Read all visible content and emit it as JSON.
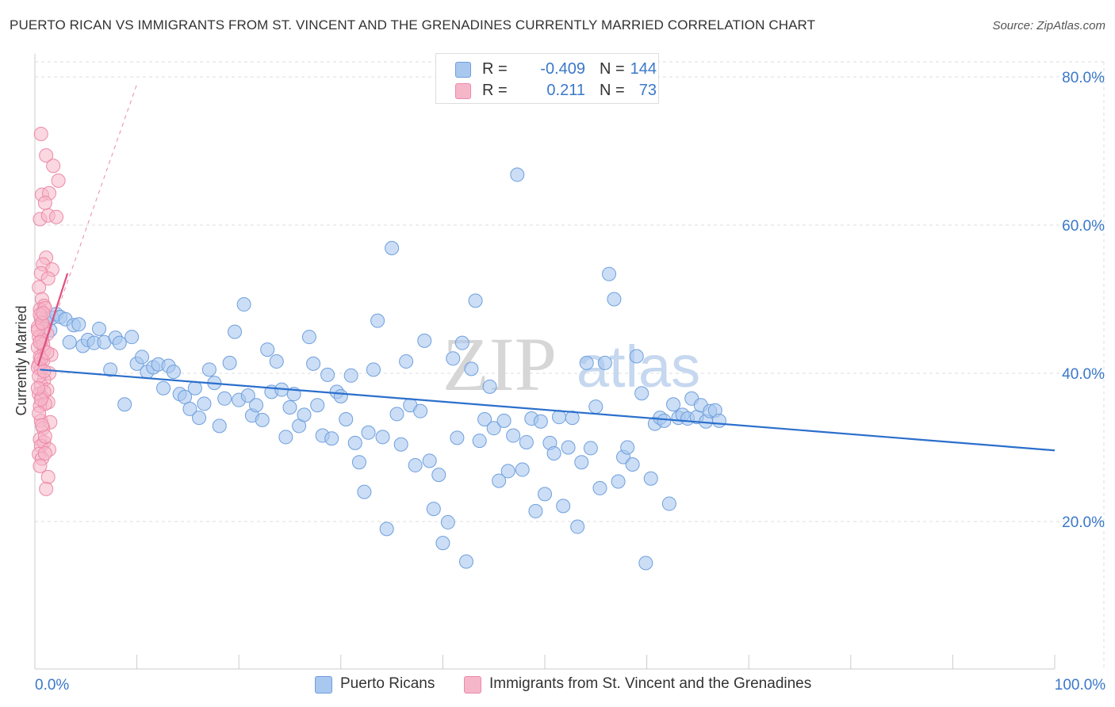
{
  "title": "PUERTO RICAN VS IMMIGRANTS FROM ST. VINCENT AND THE GRENADINES CURRENTLY MARRIED CORRELATION CHART",
  "source": "Source: ZipAtlas.com",
  "watermark": {
    "zip": "ZIP",
    "atlas": "atlas"
  },
  "colors": {
    "blue_fill": "#a9c8f0",
    "blue_edge": "#6f9fdc",
    "blue_line": "#2b6fcc",
    "pink_fill": "#f6b6c9",
    "pink_edge": "#ec8aa8",
    "pink_line": "#e0507e",
    "axis_text": "#3a78c9",
    "grid": "#dddddd"
  },
  "legend_top": [
    {
      "name": "series-blue",
      "r_label": "R =",
      "r_value": "-0.409",
      "n_label": "N =",
      "n_value": "144",
      "color": "#a9c8f0"
    },
    {
      "name": "series-pink",
      "r_label": "R =",
      "r_value": "0.211",
      "n_label": "N =",
      "n_value": "73",
      "color": "#f6b6c9"
    }
  ],
  "legend_bottom": [
    {
      "label": "Puerto Ricans",
      "color": "#a9c8f0"
    },
    {
      "label": "Immigrants from St. Vincent and the Grenadines",
      "color": "#f6b6c9"
    }
  ],
  "chart_data": {
    "type": "scatter",
    "title": "PUERTO RICAN VS IMMIGRANTS FROM ST. VINCENT AND THE GRENADINES CURRENTLY MARRIED CORRELATION CHART",
    "xlabel": "",
    "ylabel": "Currently Married",
    "xlim": [
      0,
      100
    ],
    "ylim": [
      0,
      82
    ],
    "x_tick_labels": [
      {
        "value": 0,
        "label": "0.0%"
      },
      {
        "value": 100,
        "label": "100.0%"
      }
    ],
    "y_tick_labels": [
      {
        "value": 20,
        "label": "20.0%"
      },
      {
        "value": 40,
        "label": "40.0%"
      },
      {
        "value": 60,
        "label": "60.0%"
      },
      {
        "value": 80,
        "label": "80.0%"
      }
    ],
    "grid": true,
    "legend_position": "top-center",
    "series": [
      {
        "name": "Puerto Ricans",
        "color": "#a9c8f0",
        "trend": {
          "x": [
            0.5,
            100
          ],
          "y": [
            40.5,
            29.6
          ]
        },
        "points": [
          [
            1.2,
            47.3
          ],
          [
            1.5,
            45.8
          ],
          [
            1.7,
            47.5
          ],
          [
            2.1,
            48.0
          ],
          [
            2.5,
            47.6
          ],
          [
            3.0,
            47.3
          ],
          [
            3.4,
            44.2
          ],
          [
            3.8,
            46.5
          ],
          [
            4.3,
            46.6
          ],
          [
            4.7,
            43.7
          ],
          [
            5.2,
            44.5
          ],
          [
            5.8,
            44.1
          ],
          [
            6.3,
            46.0
          ],
          [
            6.8,
            44.2
          ],
          [
            7.4,
            40.5
          ],
          [
            7.9,
            44.8
          ],
          [
            8.3,
            44.1
          ],
          [
            8.8,
            35.8
          ],
          [
            9.5,
            44.9
          ],
          [
            10.0,
            41.3
          ],
          [
            10.5,
            42.2
          ],
          [
            11.0,
            40.2
          ],
          [
            11.6,
            40.8
          ],
          [
            12.1,
            41.2
          ],
          [
            12.6,
            38.0
          ],
          [
            13.1,
            41.0
          ],
          [
            13.6,
            40.2
          ],
          [
            14.2,
            37.2
          ],
          [
            14.7,
            36.8
          ],
          [
            15.2,
            35.2
          ],
          [
            15.7,
            38.0
          ],
          [
            16.1,
            34.0
          ],
          [
            16.6,
            35.9
          ],
          [
            17.1,
            40.5
          ],
          [
            17.6,
            38.7
          ],
          [
            18.1,
            32.9
          ],
          [
            18.6,
            36.6
          ],
          [
            19.1,
            41.4
          ],
          [
            19.6,
            45.6
          ],
          [
            20.0,
            36.4
          ],
          [
            20.5,
            49.3
          ],
          [
            20.9,
            37.0
          ],
          [
            21.3,
            34.3
          ],
          [
            21.7,
            35.7
          ],
          [
            22.3,
            33.7
          ],
          [
            22.8,
            43.2
          ],
          [
            23.2,
            37.5
          ],
          [
            23.7,
            41.6
          ],
          [
            24.2,
            37.8
          ],
          [
            24.6,
            31.4
          ],
          [
            25.0,
            35.4
          ],
          [
            25.4,
            37.2
          ],
          [
            25.9,
            32.9
          ],
          [
            26.4,
            34.4
          ],
          [
            26.9,
            44.9
          ],
          [
            27.3,
            41.3
          ],
          [
            27.7,
            35.7
          ],
          [
            28.2,
            31.6
          ],
          [
            28.7,
            39.8
          ],
          [
            29.1,
            31.2
          ],
          [
            29.6,
            37.5
          ],
          [
            30.0,
            36.9
          ],
          [
            30.5,
            33.8
          ],
          [
            31.0,
            39.7
          ],
          [
            31.4,
            30.6
          ],
          [
            31.8,
            28.0
          ],
          [
            32.3,
            24.0
          ],
          [
            32.7,
            32.0
          ],
          [
            33.2,
            40.5
          ],
          [
            33.6,
            47.1
          ],
          [
            34.1,
            31.4
          ],
          [
            34.5,
            19.0
          ],
          [
            35.0,
            56.9
          ],
          [
            35.5,
            34.5
          ],
          [
            35.9,
            30.4
          ],
          [
            36.4,
            41.6
          ],
          [
            36.8,
            35.7
          ],
          [
            37.3,
            27.6
          ],
          [
            37.8,
            34.9
          ],
          [
            38.2,
            44.4
          ],
          [
            38.7,
            28.2
          ],
          [
            39.1,
            21.7
          ],
          [
            39.6,
            26.3
          ],
          [
            40.0,
            17.1
          ],
          [
            40.5,
            19.9
          ],
          [
            41.0,
            42.0
          ],
          [
            41.4,
            31.3
          ],
          [
            41.9,
            44.1
          ],
          [
            42.3,
            14.6
          ],
          [
            42.8,
            40.6
          ],
          [
            43.2,
            49.8
          ],
          [
            43.6,
            30.9
          ],
          [
            44.1,
            33.8
          ],
          [
            44.6,
            38.2
          ],
          [
            45.0,
            32.6
          ],
          [
            45.5,
            25.5
          ],
          [
            46.0,
            33.6
          ],
          [
            46.4,
            26.8
          ],
          [
            46.9,
            31.6
          ],
          [
            47.3,
            66.8
          ],
          [
            47.8,
            27.0
          ],
          [
            48.2,
            30.7
          ],
          [
            48.7,
            33.9
          ],
          [
            49.1,
            21.4
          ],
          [
            49.6,
            33.5
          ],
          [
            50.0,
            23.7
          ],
          [
            50.5,
            30.6
          ],
          [
            50.9,
            29.2
          ],
          [
            51.4,
            34.1
          ],
          [
            51.8,
            22.1
          ],
          [
            52.3,
            30.0
          ],
          [
            52.7,
            34.0
          ],
          [
            53.2,
            19.3
          ],
          [
            53.6,
            28.0
          ],
          [
            54.1,
            41.4
          ],
          [
            54.5,
            29.9
          ],
          [
            55.0,
            35.5
          ],
          [
            55.4,
            24.5
          ],
          [
            55.9,
            41.4
          ],
          [
            56.3,
            53.4
          ],
          [
            56.8,
            50.0
          ],
          [
            57.2,
            25.4
          ],
          [
            57.7,
            28.7
          ],
          [
            58.1,
            30.0
          ],
          [
            58.6,
            27.7
          ],
          [
            59.0,
            42.3
          ],
          [
            59.5,
            37.3
          ],
          [
            59.9,
            14.4
          ],
          [
            60.4,
            25.8
          ],
          [
            60.8,
            33.2
          ],
          [
            61.3,
            34.0
          ],
          [
            61.7,
            33.6
          ],
          [
            62.2,
            22.4
          ],
          [
            62.6,
            35.8
          ],
          [
            63.1,
            34.0
          ],
          [
            63.5,
            34.4
          ],
          [
            64.0,
            33.9
          ],
          [
            64.4,
            36.6
          ],
          [
            64.9,
            34.1
          ],
          [
            65.3,
            35.7
          ],
          [
            65.8,
            33.5
          ],
          [
            66.2,
            34.9
          ],
          [
            66.7,
            35.0
          ],
          [
            67.1,
            33.6
          ]
        ]
      },
      {
        "name": "Immigrants from St. Vincent and the Grenadines",
        "color": "#f6b6c9",
        "trend": {
          "x": [
            0.3,
            3.2
          ],
          "y": [
            41.0,
            53.5
          ]
        },
        "trend_extended": {
          "x": [
            0.3,
            10.0
          ],
          "y": [
            41.0,
            79.0
          ]
        },
        "points": [
          [
            0.6,
            72.3
          ],
          [
            1.1,
            69.4
          ],
          [
            1.8,
            68.0
          ],
          [
            2.3,
            66.0
          ],
          [
            0.7,
            64.1
          ],
          [
            1.4,
            64.3
          ],
          [
            1.0,
            63.0
          ],
          [
            0.5,
            60.8
          ],
          [
            1.3,
            61.3
          ],
          [
            2.1,
            61.1
          ],
          [
            1.1,
            55.6
          ],
          [
            0.8,
            54.7
          ],
          [
            1.7,
            54.0
          ],
          [
            0.6,
            53.5
          ],
          [
            1.3,
            52.8
          ],
          [
            0.4,
            51.6
          ],
          [
            0.7,
            50.0
          ],
          [
            0.9,
            49.1
          ],
          [
            0.5,
            48.6
          ],
          [
            1.0,
            48.8
          ],
          [
            0.6,
            47.4
          ],
          [
            0.8,
            46.6
          ],
          [
            0.3,
            46.2
          ],
          [
            0.9,
            46.0
          ],
          [
            1.2,
            45.3
          ],
          [
            0.4,
            44.9
          ],
          [
            0.7,
            44.5
          ],
          [
            0.3,
            43.5
          ],
          [
            0.9,
            43.1
          ],
          [
            1.6,
            42.5
          ],
          [
            0.5,
            42.2
          ],
          [
            0.8,
            41.7
          ],
          [
            0.4,
            41.2
          ],
          [
            0.6,
            40.5
          ],
          [
            1.4,
            40.0
          ],
          [
            0.3,
            40.8
          ],
          [
            0.9,
            39.1
          ],
          [
            0.6,
            38.4
          ],
          [
            1.2,
            37.8
          ],
          [
            0.4,
            37.2
          ],
          [
            0.7,
            36.8
          ],
          [
            1.3,
            36.1
          ],
          [
            0.5,
            35.6
          ],
          [
            1.0,
            35.9
          ],
          [
            0.6,
            33.6
          ],
          [
            1.5,
            33.4
          ],
          [
            0.8,
            32.6
          ],
          [
            0.5,
            31.1
          ],
          [
            0.9,
            30.7
          ],
          [
            0.6,
            30.2
          ],
          [
            1.4,
            29.7
          ],
          [
            0.4,
            29.1
          ],
          [
            0.7,
            28.5
          ],
          [
            1.0,
            29.2
          ],
          [
            0.5,
            27.5
          ],
          [
            1.3,
            26.0
          ],
          [
            1.1,
            24.4
          ],
          [
            0.6,
            41.9
          ],
          [
            0.8,
            43.9
          ],
          [
            0.3,
            45.8
          ],
          [
            0.5,
            47.9
          ],
          [
            0.9,
            37.5
          ],
          [
            0.4,
            39.6
          ],
          [
            1.2,
            42.8
          ],
          [
            0.7,
            46.8
          ],
          [
            0.8,
            48.1
          ],
          [
            0.4,
            34.6
          ],
          [
            1.0,
            31.5
          ],
          [
            0.6,
            36.5
          ],
          [
            0.5,
            44.2
          ],
          [
            0.9,
            40.3
          ],
          [
            0.3,
            38.0
          ],
          [
            0.7,
            33.0
          ]
        ]
      }
    ]
  }
}
